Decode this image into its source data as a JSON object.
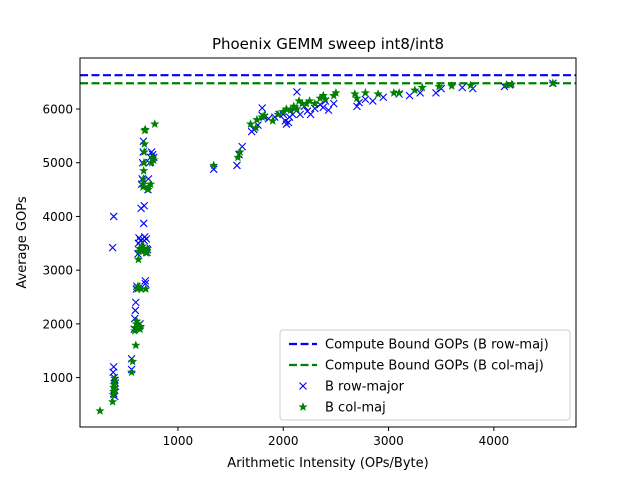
{
  "chart_data": {
    "type": "scatter",
    "title": "Phoenix GEMM sweep int8/int8",
    "xlabel": "Arithmetic Intensity (OPs/Byte)",
    "ylabel": "Average GOPs",
    "xlim": [
      70,
      4780
    ],
    "ylim": [
      80,
      6950
    ],
    "xticks": [
      1000,
      2000,
      3000,
      4000
    ],
    "yticks": [
      1000,
      2000,
      3000,
      4000,
      5000,
      6000
    ],
    "grid": false,
    "legend_position": "lower-right",
    "hlines": [
      {
        "name": "Compute Bound GOPs (B row-maj)",
        "y": 6630,
        "color": "#0000ff",
        "style": "dashed"
      },
      {
        "name": "Compute Bound GOPs (B col-maj)",
        "y": 6480,
        "color": "#008000",
        "style": "dashed"
      }
    ],
    "series": [
      {
        "name": "B row-major",
        "marker": "x",
        "color": "#0000ff",
        "points": [
          [
            390,
            1200
          ],
          [
            385,
            1100
          ],
          [
            395,
            1000
          ],
          [
            400,
            950
          ],
          [
            405,
            900
          ],
          [
            400,
            850
          ],
          [
            395,
            780
          ],
          [
            390,
            700
          ],
          [
            400,
            650
          ],
          [
            380,
            3420
          ],
          [
            390,
            4000
          ],
          [
            560,
            1150
          ],
          [
            560,
            1350
          ],
          [
            585,
            1900
          ],
          [
            590,
            2100
          ],
          [
            595,
            2250
          ],
          [
            600,
            2400
          ],
          [
            605,
            2650
          ],
          [
            610,
            2700
          ],
          [
            620,
            3300
          ],
          [
            625,
            3500
          ],
          [
            630,
            3600
          ],
          [
            640,
            2000
          ],
          [
            645,
            3550
          ],
          [
            650,
            4150
          ],
          [
            655,
            4600
          ],
          [
            660,
            4700
          ],
          [
            665,
            5000
          ],
          [
            670,
            5200
          ],
          [
            672,
            5400
          ],
          [
            675,
            3870
          ],
          [
            680,
            3550
          ],
          [
            680,
            4200
          ],
          [
            685,
            3620
          ],
          [
            690,
            2750
          ],
          [
            690,
            2800
          ],
          [
            700,
            3580
          ],
          [
            700,
            3400
          ],
          [
            705,
            3330
          ],
          [
            710,
            3380
          ],
          [
            715,
            4500
          ],
          [
            720,
            4700
          ],
          [
            730,
            5000
          ],
          [
            740,
            5100
          ],
          [
            750,
            5200
          ],
          [
            760,
            5150
          ],
          [
            770,
            5100
          ],
          [
            1340,
            4880
          ],
          [
            1560,
            4950
          ],
          [
            1580,
            5150
          ],
          [
            1610,
            5300
          ],
          [
            1700,
            5580
          ],
          [
            1720,
            5620
          ],
          [
            1760,
            5700
          ],
          [
            1800,
            5880
          ],
          [
            1800,
            6020
          ],
          [
            1820,
            5850
          ],
          [
            1860,
            5820
          ],
          [
            1920,
            5850
          ],
          [
            1960,
            5900
          ],
          [
            2000,
            5900
          ],
          [
            2020,
            5780
          ],
          [
            2030,
            5720
          ],
          [
            2050,
            5750
          ],
          [
            2060,
            5850
          ],
          [
            2090,
            5900
          ],
          [
            2110,
            6000
          ],
          [
            2130,
            6320
          ],
          [
            2160,
            5900
          ],
          [
            2200,
            6050
          ],
          [
            2230,
            5960
          ],
          [
            2260,
            5900
          ],
          [
            2300,
            6010
          ],
          [
            2350,
            6080
          ],
          [
            2380,
            6030
          ],
          [
            2400,
            6150
          ],
          [
            2430,
            5980
          ],
          [
            2480,
            6100
          ],
          [
            2700,
            6050
          ],
          [
            2720,
            6120
          ],
          [
            2780,
            6180
          ],
          [
            2850,
            6150
          ],
          [
            2950,
            6220
          ],
          [
            3100,
            6280
          ],
          [
            3200,
            6250
          ],
          [
            3300,
            6300
          ],
          [
            3450,
            6300
          ],
          [
            3500,
            6380
          ],
          [
            3700,
            6400
          ],
          [
            3800,
            6380
          ],
          [
            4100,
            6420
          ],
          [
            4150,
            6450
          ],
          [
            4560,
            6480
          ]
        ]
      },
      {
        "name": "B col-maj",
        "marker": "star",
        "color": "#008000",
        "points": [
          [
            260,
            380
          ],
          [
            380,
            550
          ],
          [
            385,
            680
          ],
          [
            390,
            740
          ],
          [
            392,
            810
          ],
          [
            395,
            870
          ],
          [
            398,
            920
          ],
          [
            402,
            980
          ],
          [
            405,
            760
          ],
          [
            560,
            1100
          ],
          [
            570,
            1300
          ],
          [
            590,
            1870
          ],
          [
            595,
            1930
          ],
          [
            600,
            1600
          ],
          [
            605,
            2000
          ],
          [
            610,
            2050
          ],
          [
            615,
            2650
          ],
          [
            620,
            2700
          ],
          [
            625,
            3200
          ],
          [
            630,
            3350
          ],
          [
            635,
            3400
          ],
          [
            640,
            1900
          ],
          [
            645,
            1950
          ],
          [
            650,
            2650
          ],
          [
            655,
            3350
          ],
          [
            660,
            3400
          ],
          [
            665,
            3450
          ],
          [
            668,
            4550
          ],
          [
            670,
            4600
          ],
          [
            672,
            4700
          ],
          [
            675,
            4850
          ],
          [
            678,
            5000
          ],
          [
            680,
            5200
          ],
          [
            682,
            5350
          ],
          [
            685,
            5600
          ],
          [
            690,
            5620
          ],
          [
            695,
            2650
          ],
          [
            700,
            3320
          ],
          [
            705,
            3350
          ],
          [
            710,
            3400
          ],
          [
            715,
            4500
          ],
          [
            720,
            4550
          ],
          [
            740,
            4600
          ],
          [
            750,
            5000
          ],
          [
            760,
            5100
          ],
          [
            770,
            5050
          ],
          [
            780,
            5720
          ],
          [
            1340,
            4950
          ],
          [
            1570,
            5100
          ],
          [
            1590,
            5200
          ],
          [
            1690,
            5720
          ],
          [
            1740,
            5650
          ],
          [
            1750,
            5800
          ],
          [
            1800,
            5850
          ],
          [
            1820,
            5880
          ],
          [
            1900,
            5780
          ],
          [
            1950,
            5900
          ],
          [
            2000,
            5950
          ],
          [
            2030,
            6000
          ],
          [
            2070,
            5980
          ],
          [
            2100,
            6050
          ],
          [
            2130,
            6000
          ],
          [
            2150,
            6150
          ],
          [
            2180,
            6100
          ],
          [
            2220,
            6100
          ],
          [
            2250,
            6150
          ],
          [
            2300,
            6100
          ],
          [
            2350,
            6200
          ],
          [
            2380,
            6250
          ],
          [
            2400,
            6180
          ],
          [
            2480,
            6250
          ],
          [
            2500,
            6300
          ],
          [
            2680,
            6280
          ],
          [
            2700,
            6200
          ],
          [
            2780,
            6300
          ],
          [
            2900,
            6280
          ],
          [
            3050,
            6300
          ],
          [
            3100,
            6300
          ],
          [
            3250,
            6350
          ],
          [
            3320,
            6400
          ],
          [
            3480,
            6420
          ],
          [
            3600,
            6430
          ],
          [
            3780,
            6440
          ],
          [
            4120,
            6450
          ],
          [
            4170,
            6460
          ],
          [
            4560,
            6480
          ]
        ]
      }
    ]
  }
}
